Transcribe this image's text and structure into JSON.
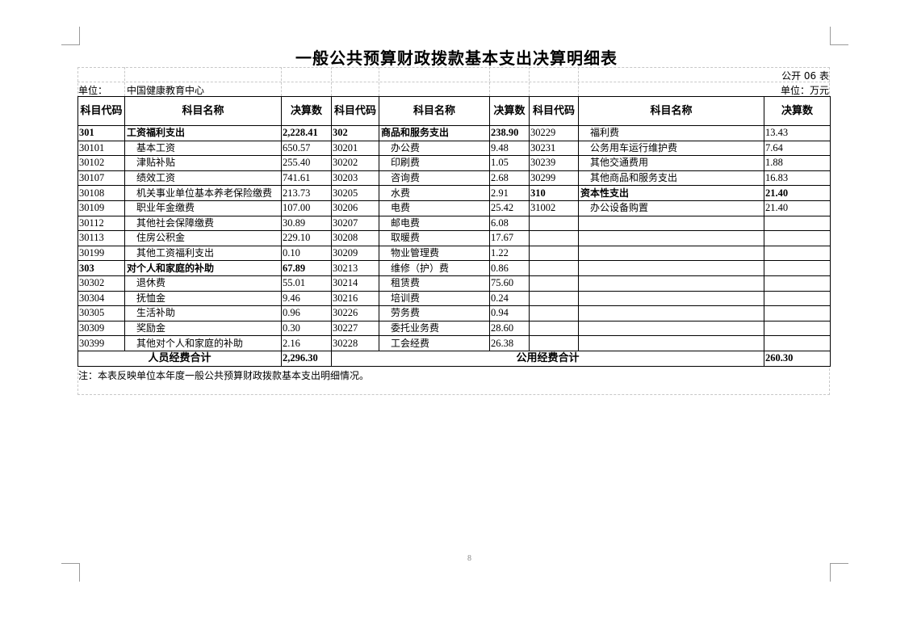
{
  "title": "一般公共预算财政拨款基本支出决算明细表",
  "table_no": "公开 06 表",
  "unit_label": "单位：",
  "unit_name": "中国健康教育中心",
  "unit_money": "单位：万元",
  "headers": [
    "科目代码",
    "科目名称",
    "决算数",
    "科目代码",
    "科目名称",
    "决算数",
    "科目代码",
    "科目名称",
    "决算数"
  ],
  "rows": [
    {
      "bold": [
        true,
        true,
        false
      ],
      "cells": [
        "301",
        "工资福利支出",
        "2,228.41",
        "302",
        "商品和服务支出",
        "238.90",
        "30229",
        "福利费",
        "13.43"
      ]
    },
    {
      "bold": [
        false,
        false,
        false
      ],
      "cells": [
        "30101",
        "基本工资",
        "650.57",
        "30201",
        "办公费",
        "9.48",
        "30231",
        "公务用车运行维护费",
        "7.64"
      ]
    },
    {
      "bold": [
        false,
        false,
        false
      ],
      "cells": [
        "30102",
        "津贴补贴",
        "255.40",
        "30202",
        "印刷费",
        "1.05",
        "30239",
        "其他交通费用",
        "1.88"
      ]
    },
    {
      "bold": [
        false,
        false,
        false
      ],
      "cells": [
        "30107",
        "绩效工资",
        "741.61",
        "30203",
        "咨询费",
        "2.68",
        "30299",
        "其他商品和服务支出",
        "16.83"
      ]
    },
    {
      "bold": [
        false,
        false,
        true
      ],
      "cells": [
        "30108",
        "机关事业单位基本养老保险缴费",
        "213.73",
        "30205",
        "水费",
        "2.91",
        "310",
        "资本性支出",
        "21.40"
      ]
    },
    {
      "bold": [
        false,
        false,
        false
      ],
      "cells": [
        "30109",
        "职业年金缴费",
        "107.00",
        "30206",
        "电费",
        "25.42",
        "31002",
        "办公设备购置",
        "21.40"
      ]
    },
    {
      "bold": [
        false,
        false,
        false
      ],
      "cells": [
        "30112",
        "其他社会保障缴费",
        "30.89",
        "30207",
        "邮电费",
        "6.08",
        "",
        "",
        ""
      ]
    },
    {
      "bold": [
        false,
        false,
        false
      ],
      "cells": [
        "30113",
        "住房公积金",
        "229.10",
        "30208",
        "取暖费",
        "17.67",
        "",
        "",
        ""
      ]
    },
    {
      "bold": [
        false,
        false,
        false
      ],
      "cells": [
        "30199",
        "其他工资福利支出",
        "0.10",
        "30209",
        "物业管理费",
        "1.22",
        "",
        "",
        ""
      ]
    },
    {
      "bold": [
        true,
        false,
        false
      ],
      "cells": [
        "303",
        "对个人和家庭的补助",
        "67.89",
        "30213",
        "维修（护）费",
        "0.86",
        "",
        "",
        ""
      ]
    },
    {
      "bold": [
        false,
        false,
        false
      ],
      "cells": [
        "30302",
        "退休费",
        "55.01",
        "30214",
        "租赁费",
        "75.60",
        "",
        "",
        ""
      ]
    },
    {
      "bold": [
        false,
        false,
        false
      ],
      "cells": [
        "30304",
        "抚恤金",
        "9.46",
        "30216",
        "培训费",
        "0.24",
        "",
        "",
        ""
      ]
    },
    {
      "bold": [
        false,
        false,
        false
      ],
      "cells": [
        "30305",
        "生活补助",
        "0.96",
        "30226",
        "劳务费",
        "0.94",
        "",
        "",
        ""
      ]
    },
    {
      "bold": [
        false,
        false,
        false
      ],
      "cells": [
        "30309",
        "奖励金",
        "0.30",
        "30227",
        "委托业务费",
        "28.60",
        "",
        "",
        ""
      ]
    },
    {
      "bold": [
        false,
        false,
        false
      ],
      "cells": [
        "30399",
        "其他对个人和家庭的补助",
        "2.16",
        "30228",
        "工会经费",
        "26.38",
        "",
        "",
        ""
      ]
    }
  ],
  "totals": {
    "personnel_label": "人员经费合计",
    "personnel_value": "2,296.30",
    "public_label": "公用经费合计",
    "public_value": "260.30"
  },
  "note": "注：本表反映单位本年度一般公共预算财政拨款基本支出明细情况。",
  "page_number": "8"
}
